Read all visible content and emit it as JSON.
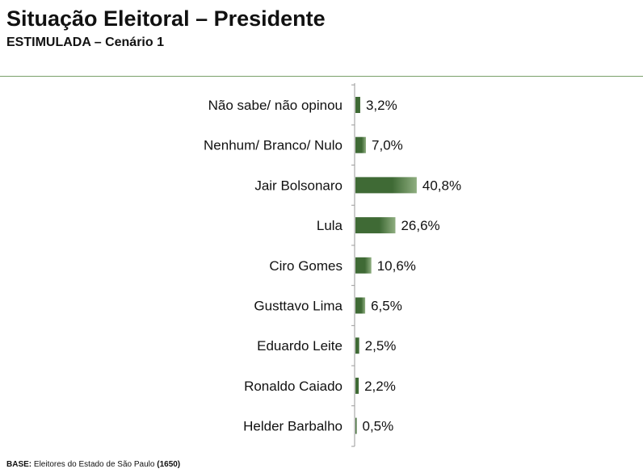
{
  "header": {
    "title": "Situação Eleitoral – Presidente",
    "subtitle": "ESTIMULADA – Cenário 1"
  },
  "footnote": {
    "base_label": "BASE:",
    "text": " Eleitores do Estado de São Paulo ",
    "count": "(1650)"
  },
  "colors": {
    "bar_dark": "#3f6a35",
    "bar_light": "#8fae80",
    "axis": "#9a9a9a",
    "rule": "#7aa06a"
  },
  "chart_data": {
    "type": "bar",
    "orientation": "horizontal",
    "categories": [
      "Não sabe/ não opinou",
      "Nenhum/ Branco/ Nulo",
      "Jair Bolsonaro",
      "Lula",
      "Ciro Gomes",
      "Gusttavo Lima",
      "Eduardo Leite",
      "Ronaldo Caiado",
      "Helder Barbalho"
    ],
    "values": [
      3.2,
      7.0,
      40.8,
      26.6,
      10.6,
      6.5,
      2.5,
      2.2,
      0.5
    ],
    "value_labels": [
      "3,2%",
      "7,0%",
      "40,8%",
      "26,6%",
      "10,6%",
      "6,5%",
      "2,5%",
      "2,2%",
      "0,5%"
    ],
    "xlim": [
      0,
      100
    ],
    "grid": false
  }
}
